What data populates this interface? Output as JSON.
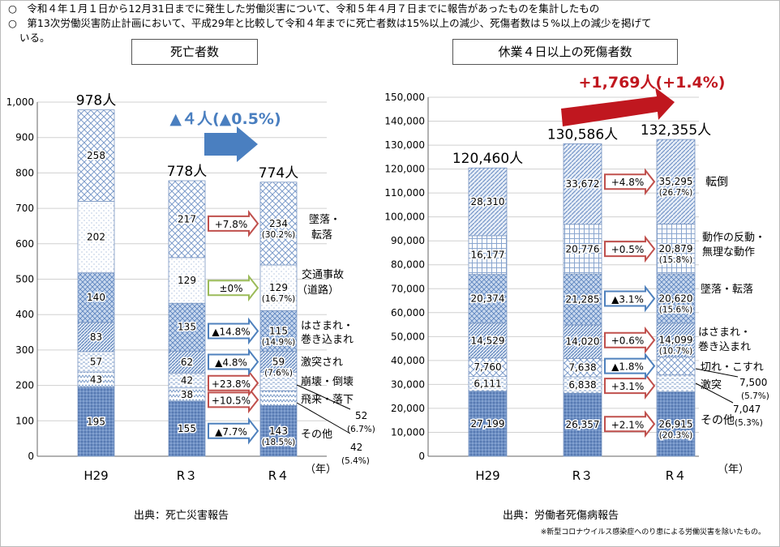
{
  "notes": {
    "n1": "○　令和４年１月１日から12月31日までに発生した労働災害について、令和５年４月７日までに報告があったものを集計したもの",
    "n2": "○　第13次労働災害防止計画において、平成29年と比較して令和４年までに死亡者数は15%以上の減少、死傷者数は５%以上の減少を掲げて",
    "n2b": "いる。"
  },
  "source_left": "出典：死亡災害報告",
  "source_right": "出典：労働者死傷病報告",
  "footnote": "※新型コロナウイルス感染症へのり患による労働災害を除いたもの。",
  "chart_data": [
    {
      "type": "bar",
      "stacked": true,
      "title": "死亡者数",
      "categories": [
        "H29",
        "R３",
        "R４"
      ],
      "x_unit": "（年）",
      "ylim": [
        0,
        1000
      ],
      "yticks": [
        "0",
        "100",
        "200",
        "300",
        "400",
        "500",
        "600",
        "700",
        "800",
        "900",
        "1,000"
      ],
      "totals": [
        "978人",
        "778人",
        "774人"
      ],
      "change_label": "▲４人(▲0.5%)",
      "series": [
        {
          "name": "その他",
          "values": [
            195,
            155,
            143
          ],
          "labels": [
            "195",
            "155",
            "143"
          ],
          "share": "(18.5%)",
          "change": "▲7.7%"
        },
        {
          "name": "飛来・落下",
          "values": [
            43,
            38,
            42
          ],
          "labels": [
            "43",
            "38",
            ""
          ],
          "share": "(5.4%)",
          "change": "+10.5%",
          "r4_callout": "42"
        },
        {
          "name": "崩壊・倒壊",
          "values": [
            57,
            42,
            52
          ],
          "labels": [
            "57",
            "42",
            ""
          ],
          "share": "(6.7%)",
          "change": "+23.8%",
          "r4_callout": "52"
        },
        {
          "name": "激突され",
          "values": [
            83,
            62,
            59
          ],
          "labels": [
            "83",
            "62",
            "59"
          ],
          "share": "(7.6%)",
          "change": "▲4.8%"
        },
        {
          "name": "はさまれ・巻き込まれ",
          "values": [
            140,
            135,
            115
          ],
          "labels": [
            "140",
            "135",
            "115"
          ],
          "share": "(14.9%)",
          "change": "▲14.8%"
        },
        {
          "name": "交通事故（道路）",
          "values": [
            202,
            129,
            129
          ],
          "labels": [
            "202",
            "129",
            "129"
          ],
          "share": "(16.7%)",
          "change": "±0%"
        },
        {
          "name": "墜落・転落",
          "values": [
            258,
            217,
            234
          ],
          "labels": [
            "258",
            "217",
            "234"
          ],
          "share": "(30.2%)",
          "change": "+7.8%"
        }
      ],
      "legend_text": {
        "fall": [
          "墜落・",
          "転落"
        ],
        "traffic": [
          "交通事故",
          "（道路）"
        ],
        "caught": [
          "はさまれ・",
          "巻き込まれ"
        ],
        "struck": "激突され",
        "collapse": "崩壊・倒壊",
        "flying": "飛来・落下",
        "other": "その他"
      }
    },
    {
      "type": "bar",
      "stacked": true,
      "title": "休業４日以上の死傷者数",
      "categories": [
        "H29",
        "R３",
        "R４"
      ],
      "x_unit": "（年）",
      "ylim": [
        0,
        150000
      ],
      "yticks": [
        "0",
        "10,000",
        "20,000",
        "30,000",
        "40,000",
        "50,000",
        "60,000",
        "70,000",
        "80,000",
        "90,000",
        "100,000",
        "110,000",
        "120,000",
        "130,000",
        "140,000",
        "150,000"
      ],
      "totals": [
        "120,460人",
        "130,586人",
        "132,355人"
      ],
      "change_label": "+1,769人(+1.4%)",
      "series": [
        {
          "name": "その他",
          "values": [
            27199,
            26357,
            26915
          ],
          "labels": [
            "27,199",
            "26,357",
            "26,915"
          ],
          "share": "(20.3%)",
          "change": "+2.1%"
        },
        {
          "name": "激突",
          "values": [
            6111,
            6838,
            7047
          ],
          "labels": [
            "6,111",
            "6,838",
            ""
          ],
          "share": "(5.3%)",
          "change": "+3.1%",
          "r4_callout": "7,047"
        },
        {
          "name": "切れ・こすれ",
          "values": [
            7760,
            7638,
            7500
          ],
          "labels": [
            "7,760",
            "7,638",
            ""
          ],
          "share": "(5.7%)",
          "change": "▲1.8%",
          "r4_callout": "7,500"
        },
        {
          "name": "はさまれ・巻き込まれ",
          "values": [
            14529,
            14020,
            14099
          ],
          "labels": [
            "14,529",
            "14,020",
            "14,099"
          ],
          "share": "(10.7%)",
          "change": "+0.6%"
        },
        {
          "name": "墜落・転落",
          "values": [
            20374,
            21285,
            20620
          ],
          "labels": [
            "20,374",
            "21,285",
            "20,620"
          ],
          "share": "(15.6%)",
          "change": "▲3.1%"
        },
        {
          "name": "動作の反動・無理な動作",
          "values": [
            16177,
            20776,
            20879
          ],
          "labels": [
            "16,177",
            "20,776",
            "20,879"
          ],
          "share": "(15.8%)",
          "change": "+0.5%"
        },
        {
          "name": "転倒",
          "values": [
            28310,
            33672,
            35295
          ],
          "labels": [
            "28,310",
            "33,672",
            "35,295"
          ],
          "share": "(26.7%)",
          "change": "+4.8%"
        }
      ],
      "legend_text": {
        "fall_over": "転倒",
        "reaction": [
          "動作の反動・",
          "無理な動作"
        ],
        "fall": "墜落・転落",
        "caught": [
          "はさまれ・",
          "巻き込まれ"
        ],
        "cut": "切れ・こすれ",
        "struck": "激突",
        "other": "その他"
      }
    }
  ],
  "colors": {
    "pos_arrow": "#c0504d",
    "neg_arrow": "#4f81bd",
    "zero_arrow": "#9bbb59",
    "big_blue": "#4a7fc0",
    "big_red": "#c0171f"
  }
}
